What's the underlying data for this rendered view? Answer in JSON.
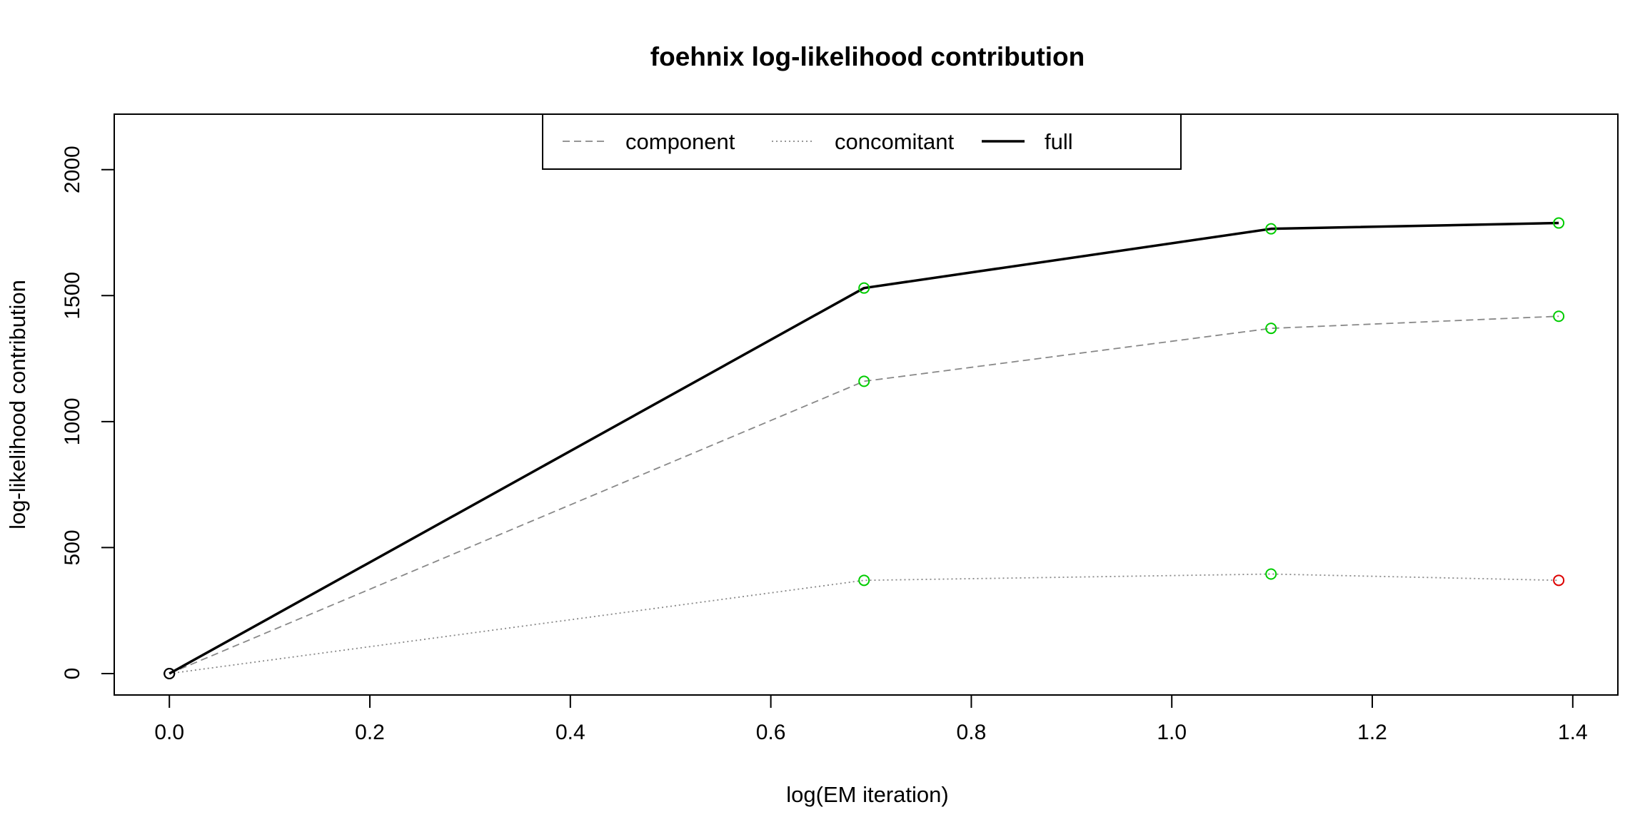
{
  "chart_data": {
    "type": "line",
    "title": "foehnix log-likelihood contribution",
    "xlabel": "log(EM iteration)",
    "ylabel": "log-likelihood contribution",
    "xlim": [
      -0.055,
      1.445
    ],
    "ylim": [
      -85,
      2220
    ],
    "x_ticks": [
      0.0,
      0.2,
      0.4,
      0.6,
      0.8,
      1.0,
      1.2,
      1.4
    ],
    "x_tick_labels": [
      "0.0",
      "0.2",
      "0.4",
      "0.6",
      "0.8",
      "1.0",
      "1.2",
      "1.4"
    ],
    "y_ticks": [
      0,
      500,
      1000,
      1500,
      2000
    ],
    "y_tick_labels": [
      "0",
      "500",
      "1000",
      "1500",
      "2000"
    ],
    "x": [
      0.0,
      0.693,
      1.099,
      1.386
    ],
    "series": [
      {
        "name": "component",
        "values": [
          0,
          1160,
          1370,
          1418
        ],
        "line_color": "#888888",
        "line_style": "dashed",
        "marker_colors": [
          "#000000",
          "#00cc00",
          "#00cc00",
          "#00cc00"
        ]
      },
      {
        "name": "concomitant",
        "values": [
          0,
          370,
          395,
          370
        ],
        "line_color": "#888888",
        "line_style": "dotted",
        "marker_colors": [
          "#000000",
          "#00cc00",
          "#00cc00",
          "#dd0000"
        ]
      },
      {
        "name": "full",
        "values": [
          0,
          1530,
          1765,
          1788
        ],
        "line_color": "#000000",
        "line_style": "solid",
        "marker_colors": [
          "#000000",
          "#00cc00",
          "#00cc00",
          "#00cc00"
        ]
      }
    ],
    "legend_position": "top-center",
    "grid": false
  }
}
